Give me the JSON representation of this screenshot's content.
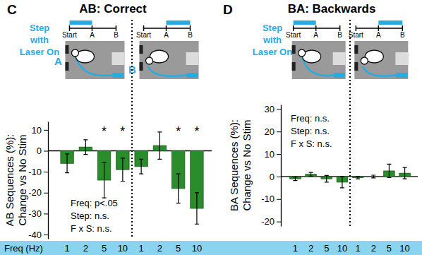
{
  "chart_data": [
    {
      "type": "bar",
      "panel_label": "C",
      "title": "AB: Correct",
      "y_label": "AB Sequences (%): Change vs No Stim",
      "x_label": "Freq (Hz)",
      "schematic_title": "Step with Laser On",
      "timeline_labels": [
        "Start",
        "A",
        "B"
      ],
      "step_labels": [
        "A",
        "B"
      ],
      "categories": [
        "1",
        "2",
        "5",
        "10",
        "1",
        "2",
        "5",
        "10"
      ],
      "values": [
        -6,
        1.8,
        -14,
        -9,
        -7.5,
        2.5,
        -18,
        -27.5
      ],
      "errors": [
        4.5,
        3.5,
        8.5,
        5.5,
        3.5,
        6.5,
        7,
        7.5
      ],
      "significant": [
        false,
        false,
        true,
        true,
        false,
        false,
        true,
        true
      ],
      "significance_label": "*",
      "stats": [
        "Freq: p<.05",
        "Step: n.s.",
        "F x S: n.s."
      ],
      "ylim": [
        -42,
        14
      ],
      "yticks": [
        10,
        0,
        -10,
        -20,
        -30,
        -40
      ],
      "color": "#2a8c2a"
    },
    {
      "type": "bar",
      "panel_label": "D",
      "title": "BA: Backwards",
      "y_label": "BA Sequences (%): Change vs No Stim",
      "schematic_title": "Step with Laser On",
      "timeline_labels": [
        "Start",
        "A",
        "B"
      ],
      "categories": [
        "1",
        "2",
        "5",
        "10",
        "1",
        "2",
        "5",
        "10"
      ],
      "values": [
        -1,
        1,
        -1,
        -2.5,
        -0.5,
        0,
        2.5,
        1.5
      ],
      "errors": [
        0.8,
        0.8,
        1.5,
        2.5,
        0.5,
        0.6,
        3,
        2.5
      ],
      "stats": [
        "Freq: n.s.",
        "Step: n.s.",
        "F x S: n.s."
      ],
      "ylim": [
        -22,
        32
      ],
      "yticks": [
        30,
        20,
        10,
        0,
        -10,
        -20
      ],
      "color": "#2a8c2a"
    }
  ]
}
